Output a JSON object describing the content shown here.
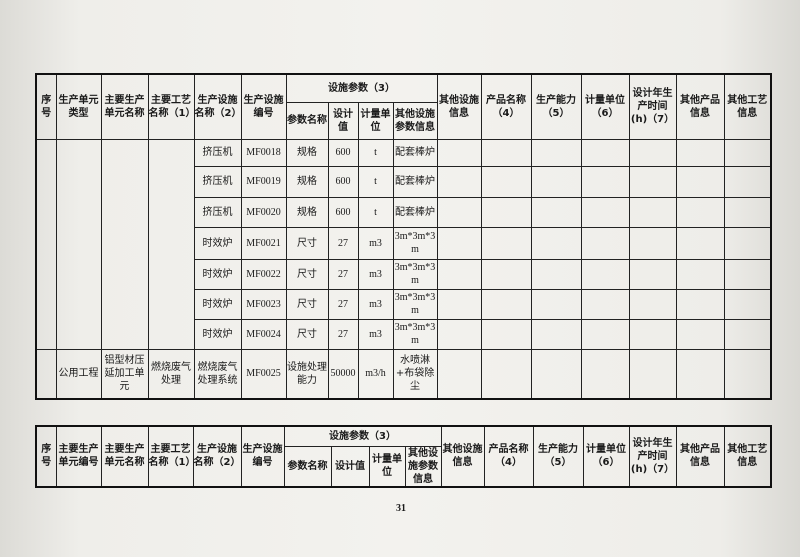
{
  "table1": {
    "headers": {
      "seq": "序号",
      "unit_type": "生产单元类型",
      "main_unit_name": "主要生产单元名称",
      "process_name": "主要工艺名称（1）",
      "facility_name": "生产设施名称（2）",
      "facility_code": "生产设施编号",
      "params_group": "设施参数（3）",
      "param_name": "参数名称",
      "design_value": "设计值",
      "unit": "计量单位",
      "other_param": "其他设施参数信息",
      "other_facility": "其他设施信息",
      "product_name": "产品名称（4）",
      "capacity": "生产能力（5）",
      "measure_unit": "计量单位（6）",
      "design_hours": "设计年生产时间(h)（7）",
      "other_product": "其他产品信息",
      "other_process": "其他工艺信息"
    },
    "rows": [
      {
        "facility_name": "挤压机",
        "facility_code": "MF0018",
        "param_name": "规格",
        "design_value": "600",
        "unit": "t",
        "other_param": "配套棒炉"
      },
      {
        "facility_name": "挤压机",
        "facility_code": "MF0019",
        "param_name": "规格",
        "design_value": "600",
        "unit": "t",
        "other_param": "配套棒炉"
      },
      {
        "facility_name": "挤压机",
        "facility_code": "MF0020",
        "param_name": "规格",
        "design_value": "600",
        "unit": "t",
        "other_param": "配套棒炉"
      },
      {
        "facility_name": "时效炉",
        "facility_code": "MF0021",
        "param_name": "尺寸",
        "design_value": "27",
        "unit": "m3",
        "other_param": "3m*3m*3m"
      },
      {
        "facility_name": "时效炉",
        "facility_code": "MF0022",
        "param_name": "尺寸",
        "design_value": "27",
        "unit": "m3",
        "other_param": "3m*3m*3m"
      },
      {
        "facility_name": "时效炉",
        "facility_code": "MF0023",
        "param_name": "尺寸",
        "design_value": "27",
        "unit": "m3",
        "other_param": "3m*3m*3m"
      },
      {
        "facility_name": "时效炉",
        "facility_code": "MF0024",
        "param_name": "尺寸",
        "design_value": "27",
        "unit": "m3",
        "other_param": "3m*3m*3m"
      }
    ],
    "last_row": {
      "unit_type": "公用工程",
      "main_unit_name": "铝型材压延加工单元",
      "process_name": "燃烧废气处理",
      "facility_name": "燃烧废气处理系统",
      "facility_code": "MF0025",
      "param_name": "设施处理能力",
      "design_value": "50000",
      "unit": "m3/h",
      "other_param": "水喷淋+布袋除尘"
    }
  },
  "table2": {
    "headers": {
      "seq": "序号",
      "main_unit_code": "主要生产单元编号",
      "main_unit_name": "主要生产单元名称",
      "process_name": "主要工艺名称（1）",
      "facility_name": "生产设施名称（2）",
      "facility_code": "生产设施编号",
      "params_group": "设施参数（3）",
      "param_name": "参数名称",
      "design_value": "设计值",
      "unit": "计量单位",
      "other_param": "其他设施参数信息",
      "other_facility": "其他设施信息",
      "product_name": "产品名称（4）",
      "capacity": "生产能力（5）",
      "measure_unit": "计量单位（6）",
      "design_hours": "设计年生产时间(h)（7）",
      "other_product": "其他产品信息",
      "other_process": "其他工艺信息"
    }
  },
  "page_number": "31"
}
